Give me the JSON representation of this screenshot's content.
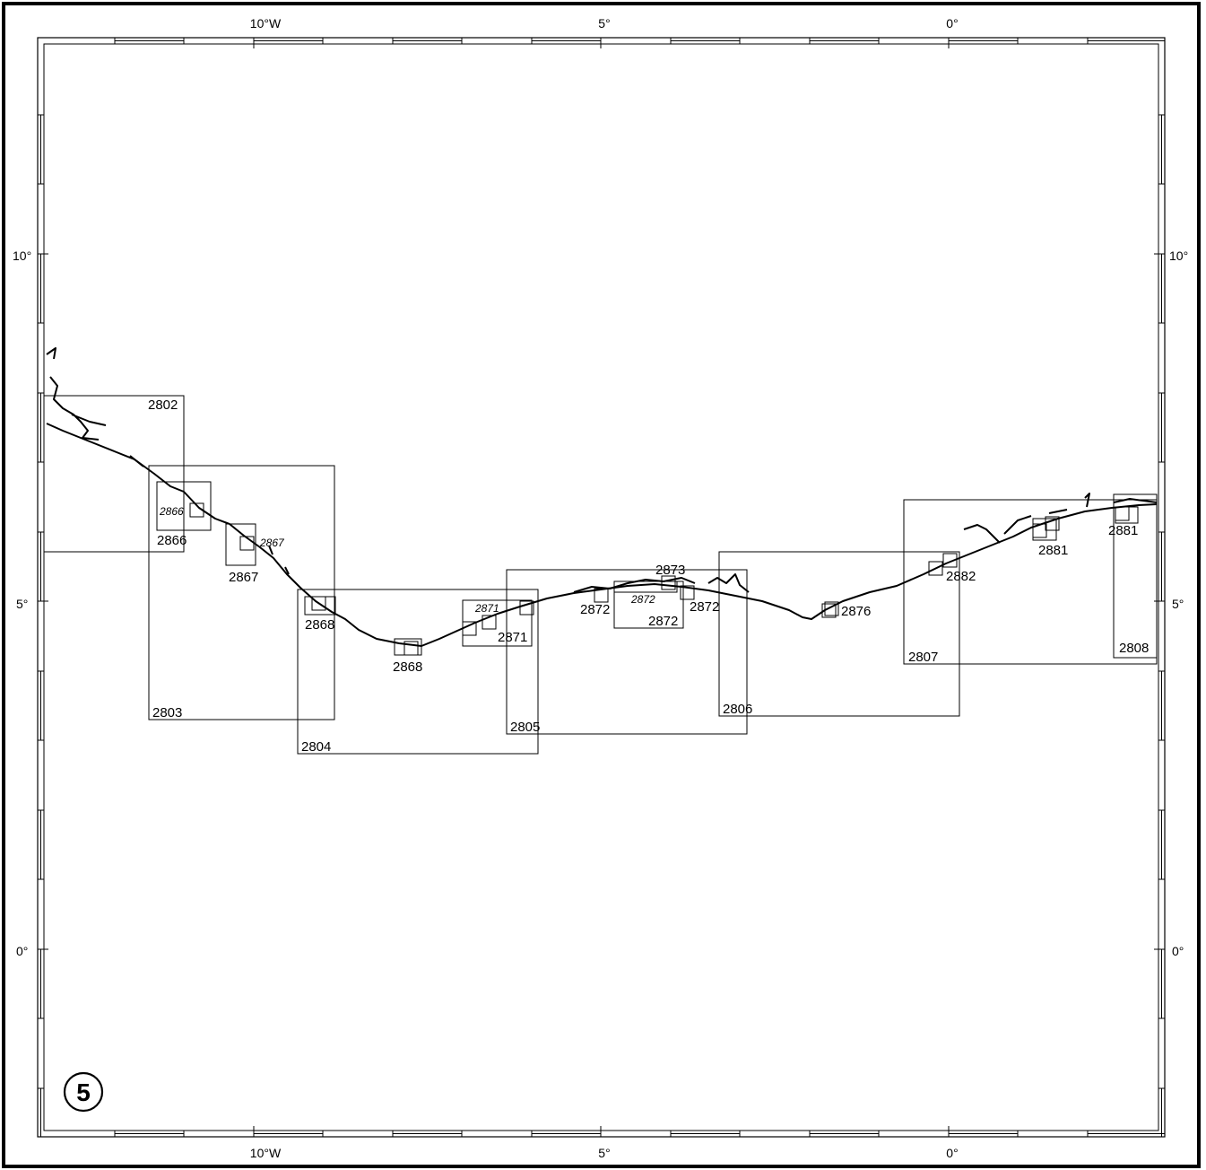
{
  "map": {
    "sheet_number": "5",
    "top_lon_labels": [
      "10°W",
      "5°",
      "0°"
    ],
    "bottom_lon_labels": [
      "10°W",
      "5°",
      "0°"
    ],
    "left_lat_labels": [
      "10°",
      "5°",
      "0°"
    ],
    "right_lat_labels": [
      "10°",
      "5°",
      "0°"
    ],
    "chart_labels": [
      {
        "id": "2802",
        "text": "2802",
        "style": "normal"
      },
      {
        "id": "2803",
        "text": "2803",
        "style": "normal"
      },
      {
        "id": "2804",
        "text": "2804",
        "style": "normal"
      },
      {
        "id": "2805",
        "text": "2805",
        "style": "normal"
      },
      {
        "id": "2806",
        "text": "2806",
        "style": "normal"
      },
      {
        "id": "2807",
        "text": "2807",
        "style": "normal"
      },
      {
        "id": "2808",
        "text": "2808",
        "style": "normal"
      },
      {
        "id": "2866a",
        "text": "2866",
        "style": "italic"
      },
      {
        "id": "2866b",
        "text": "2866",
        "style": "normal"
      },
      {
        "id": "2867a",
        "text": "2867",
        "style": "italic"
      },
      {
        "id": "2867b",
        "text": "2867",
        "style": "normal"
      },
      {
        "id": "2868a",
        "text": "2868",
        "style": "normal"
      },
      {
        "id": "2868b",
        "text": "2868",
        "style": "normal"
      },
      {
        "id": "2871a",
        "text": "2871",
        "style": "italic"
      },
      {
        "id": "2871b",
        "text": "2871",
        "style": "normal"
      },
      {
        "id": "2872a",
        "text": "2872",
        "style": "normal"
      },
      {
        "id": "2872b",
        "text": "2872",
        "style": "italic"
      },
      {
        "id": "2872c",
        "text": "2872",
        "style": "normal"
      },
      {
        "id": "2872d",
        "text": "2872",
        "style": "normal"
      },
      {
        "id": "2873",
        "text": "2873",
        "style": "normal"
      },
      {
        "id": "2876",
        "text": "2876",
        "style": "normal"
      },
      {
        "id": "2881a",
        "text": "2881",
        "style": "normal"
      },
      {
        "id": "2881b",
        "text": "2881",
        "style": "normal"
      },
      {
        "id": "2882",
        "text": "2882",
        "style": "normal"
      }
    ]
  }
}
